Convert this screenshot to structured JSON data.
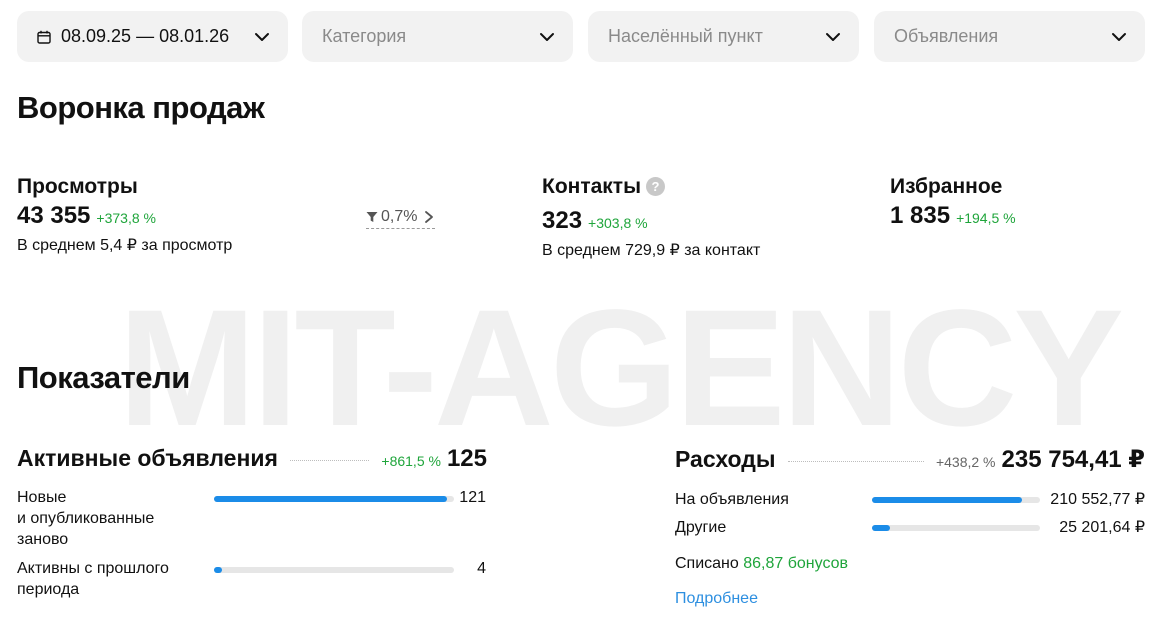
{
  "watermark": "MIT-AGENCY",
  "filters": {
    "date": "08.09.25 — 08.01.26",
    "category": "Категория",
    "city": "Населённый пункт",
    "ads": "Объявления"
  },
  "funnel": {
    "title": "Воронка продаж",
    "views": {
      "label": "Просмотры",
      "value": "43 355",
      "change": "+373,8 %",
      "note": "В среднем 5,4 ₽ за просмотр",
      "conversion": "0,7%"
    },
    "contacts": {
      "label": "Контакты",
      "help": "?",
      "value": "323",
      "change": "+303,8 %",
      "note": "В среднем 729,9 ₽ за контакт"
    },
    "favorites": {
      "label": "Избранное",
      "value": "1 835",
      "change": "+194,5 %"
    }
  },
  "metrics": {
    "title": "Показатели",
    "active_ads": {
      "label": "Активные объявления",
      "change": "+861,5 %",
      "value": "125",
      "rows": [
        {
          "label_lines": [
            "Новые",
            "и опубликованные",
            "заново"
          ],
          "value": "121",
          "fraction": 0.97
        },
        {
          "label_lines": [
            "Активны с прошлого",
            "периода"
          ],
          "value": "4",
          "fraction": 0.032
        }
      ]
    },
    "expenses": {
      "label": "Расходы",
      "change": "+438,2 %",
      "value": "235 754,41 ₽",
      "rows": [
        {
          "label": "На объявления",
          "value": "210 552,77 ₽",
          "fraction": 0.893
        },
        {
          "label": "Другие",
          "value": "25 201,64 ₽",
          "fraction": 0.107
        }
      ],
      "written_off_label": "Списано",
      "written_off_value": "86,87 бонусов",
      "more_link": "Подробнее"
    }
  },
  "colors": {
    "accent": "#1b8ce8",
    "positive": "#1fa53b",
    "link": "#2d8fe0",
    "filter_bg": "#f2f2f2"
  }
}
